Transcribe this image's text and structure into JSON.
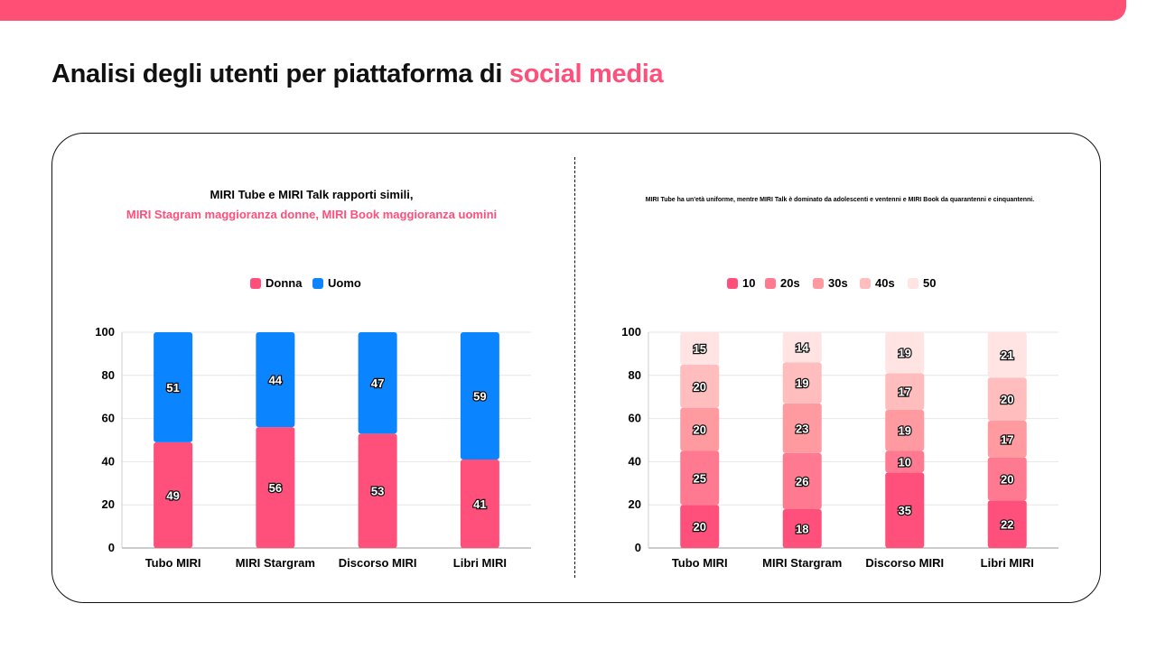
{
  "header": {
    "title": "Analisi degli utenti per piattaforma di",
    "title_accent": "social media"
  },
  "colors": {
    "accent": "#ff4f7b",
    "blue": "#0a84ff"
  },
  "chart_data": [
    {
      "type": "bar",
      "stacked": true,
      "title_line1": "MIRI Tube e MIRI Talk rapporti simili,",
      "title_line2": "MIRI Stagram maggioranza donne, MIRI Book maggioranza uomini",
      "categories": [
        "Tubo MIRI",
        "MIRI Stargram",
        "Discorso MIRI",
        "Libri MIRI"
      ],
      "series": [
        {
          "name": "Donna",
          "color": "#ff4f7b",
          "values": [
            49,
            56,
            53,
            41
          ]
        },
        {
          "name": "Uomo",
          "color": "#0a84ff",
          "values": [
            51,
            44,
            47,
            59
          ]
        }
      ],
      "ylim": [
        0,
        100
      ],
      "yticks": [
        0,
        20,
        40,
        60,
        80,
        100
      ],
      "grid": true,
      "legend": "top"
    },
    {
      "type": "bar",
      "stacked": true,
      "title": "MIRI Tube ha un'età uniforme, mentre MIRI Talk è dominato da adolescenti e ventenni e MIRI Book da quarantenni e cinquantenni.",
      "categories": [
        "Tubo MIRI",
        "MIRI Stargram",
        "Discorso MIRI",
        "Libri MIRI"
      ],
      "series": [
        {
          "name": "10",
          "color": "#ff4f7b",
          "values": [
            20,
            18,
            35,
            22
          ]
        },
        {
          "name": "20s",
          "color": "#ff7a90",
          "values": [
            25,
            26,
            10,
            20
          ]
        },
        {
          "name": "30s",
          "color": "#ff9aa0",
          "values": [
            20,
            23,
            19,
            17
          ]
        },
        {
          "name": "40s",
          "color": "#ffbdbd",
          "values": [
            20,
            19,
            17,
            20
          ]
        },
        {
          "name": "50",
          "color": "#ffe4e3",
          "values": [
            15,
            14,
            19,
            21
          ]
        }
      ],
      "ylim": [
        0,
        100
      ],
      "yticks": [
        0,
        20,
        40,
        60,
        80,
        100
      ],
      "grid": true,
      "legend": "top"
    }
  ]
}
